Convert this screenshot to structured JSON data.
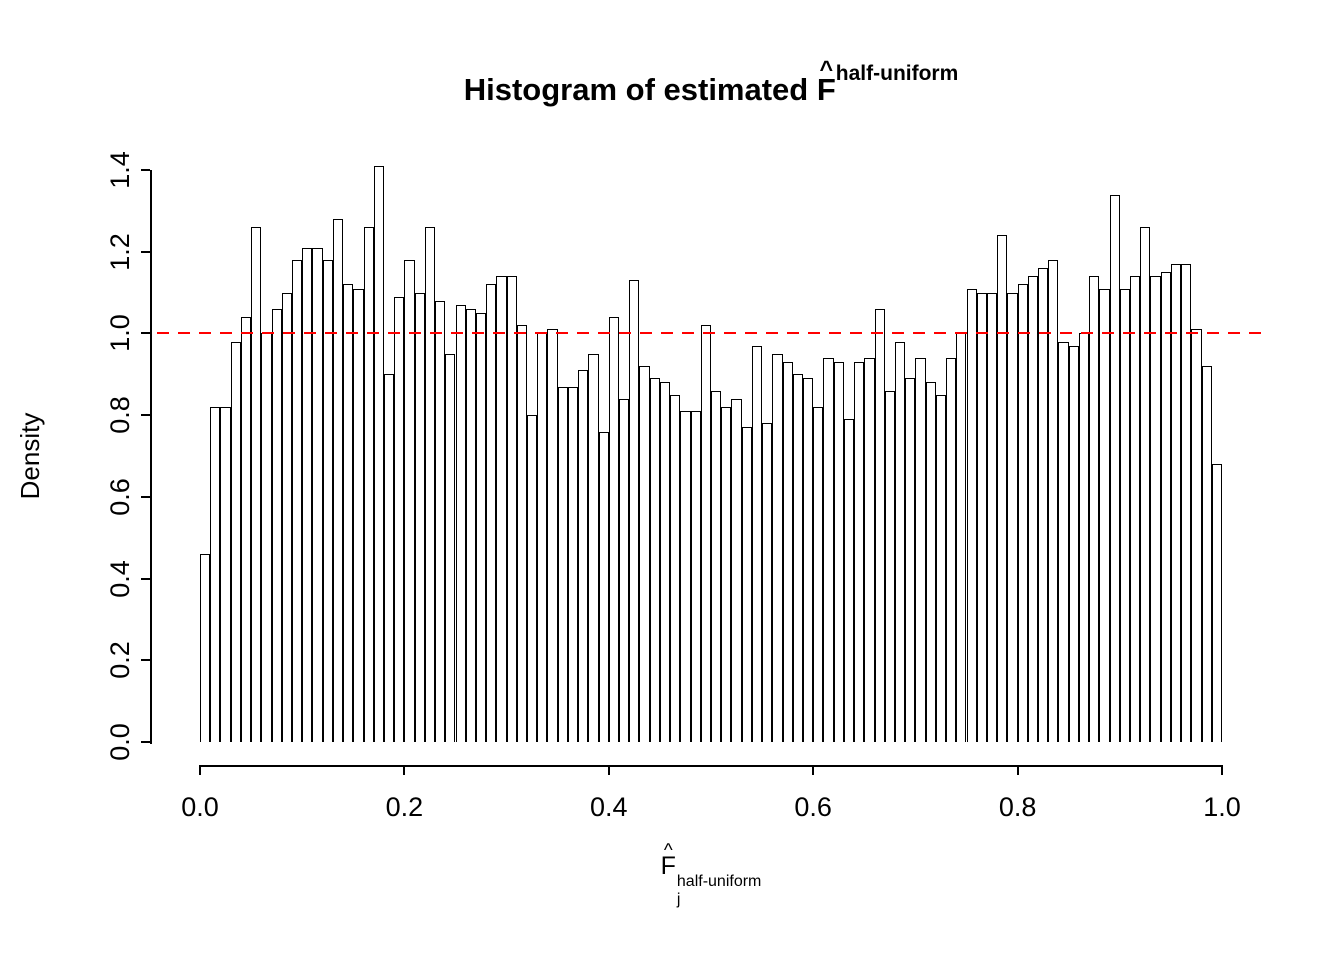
{
  "chart_data": {
    "type": "bar",
    "subtype": "histogram",
    "title": {
      "prefix": "Histogram of estimated ",
      "symbol": "F",
      "hat": "^",
      "superscript": "half-uniform"
    },
    "xlabel": {
      "symbol": "F",
      "hat": "^",
      "subscript": "j",
      "superscript": "half-uniform"
    },
    "ylabel": "Density",
    "x_ticks": [
      "0.0",
      "0.2",
      "0.4",
      "0.6",
      "0.8",
      "1.0"
    ],
    "y_ticks": [
      "0.0",
      "0.2",
      "0.4",
      "0.6",
      "0.8",
      "1.0",
      "1.2",
      "1.4"
    ],
    "xlim": [
      0,
      1
    ],
    "ylim": [
      0,
      1.4
    ],
    "bin_width": 0.01,
    "bin_start": 0.0,
    "values": [
      0.46,
      0.82,
      0.82,
      0.98,
      1.04,
      1.26,
      1.0,
      1.06,
      1.1,
      1.18,
      1.21,
      1.21,
      1.18,
      1.28,
      1.12,
      1.11,
      1.26,
      1.41,
      0.9,
      1.09,
      1.18,
      1.1,
      1.26,
      1.08,
      0.95,
      1.07,
      1.06,
      1.05,
      1.12,
      1.14,
      1.14,
      1.02,
      0.8,
      1.0,
      1.01,
      0.87,
      0.87,
      0.91,
      0.95,
      0.76,
      1.04,
      0.84,
      1.13,
      0.92,
      0.89,
      0.88,
      0.85,
      0.81,
      0.81,
      1.02,
      0.86,
      0.82,
      0.84,
      0.77,
      0.97,
      0.78,
      0.95,
      0.93,
      0.9,
      0.89,
      0.82,
      0.94,
      0.93,
      0.79,
      0.93,
      0.94,
      1.06,
      0.86,
      0.98,
      0.89,
      0.94,
      0.88,
      0.85,
      0.94,
      1.0,
      1.11,
      1.1,
      1.1,
      1.24,
      1.1,
      1.12,
      1.14,
      1.16,
      1.18,
      0.98,
      0.97,
      1.0,
      1.14,
      1.11,
      1.34,
      1.11,
      1.14,
      1.26,
      1.14,
      1.15,
      1.17,
      1.17,
      1.01,
      0.92,
      0.68
    ],
    "reference_line": {
      "y": 1.0,
      "color": "#ff0000",
      "style": "dashed"
    },
    "bar_fill": "#ffffff",
    "bar_border": "#000000",
    "grid": "off",
    "legend": "none"
  }
}
